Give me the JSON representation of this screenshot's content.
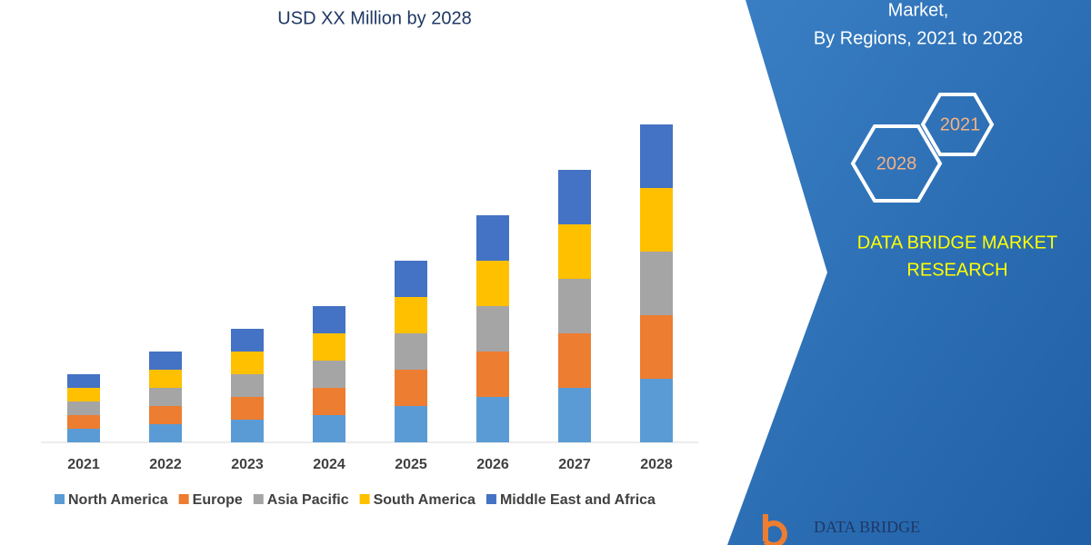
{
  "chart_data": {
    "type": "bar",
    "stacked": true,
    "title": "USD XX Million by 2028",
    "categories": [
      "2021",
      "2022",
      "2023",
      "2024",
      "2025",
      "2026",
      "2027",
      "2028"
    ],
    "series": [
      {
        "name": "North America",
        "color": "#5b9bd5",
        "values": [
          15,
          20,
          25,
          30,
          40,
          50,
          60,
          70
        ]
      },
      {
        "name": "Europe",
        "color": "#ed7d31",
        "values": [
          15,
          20,
          25,
          30,
          40,
          50,
          60,
          70
        ]
      },
      {
        "name": "Asia Pacific",
        "color": "#a5a5a5",
        "values": [
          15,
          20,
          25,
          30,
          40,
          50,
          60,
          70
        ]
      },
      {
        "name": "South America",
        "color": "#ffc000",
        "values": [
          15,
          20,
          25,
          30,
          40,
          50,
          60,
          70
        ]
      },
      {
        "name": "Middle East and Africa",
        "color": "#4472c4",
        "values": [
          15,
          20,
          25,
          30,
          40,
          50,
          60,
          70
        ]
      }
    ],
    "ylim": [
      0,
      400
    ]
  },
  "panel": {
    "title_lines": [
      "Market,",
      "By Regions, 2021 to 2028"
    ],
    "badges": [
      "2021",
      "2028"
    ],
    "brand_lines": [
      "DATA BRIDGE MARKET",
      "RESEARCH"
    ],
    "logo": "DATA BRIDGE"
  }
}
